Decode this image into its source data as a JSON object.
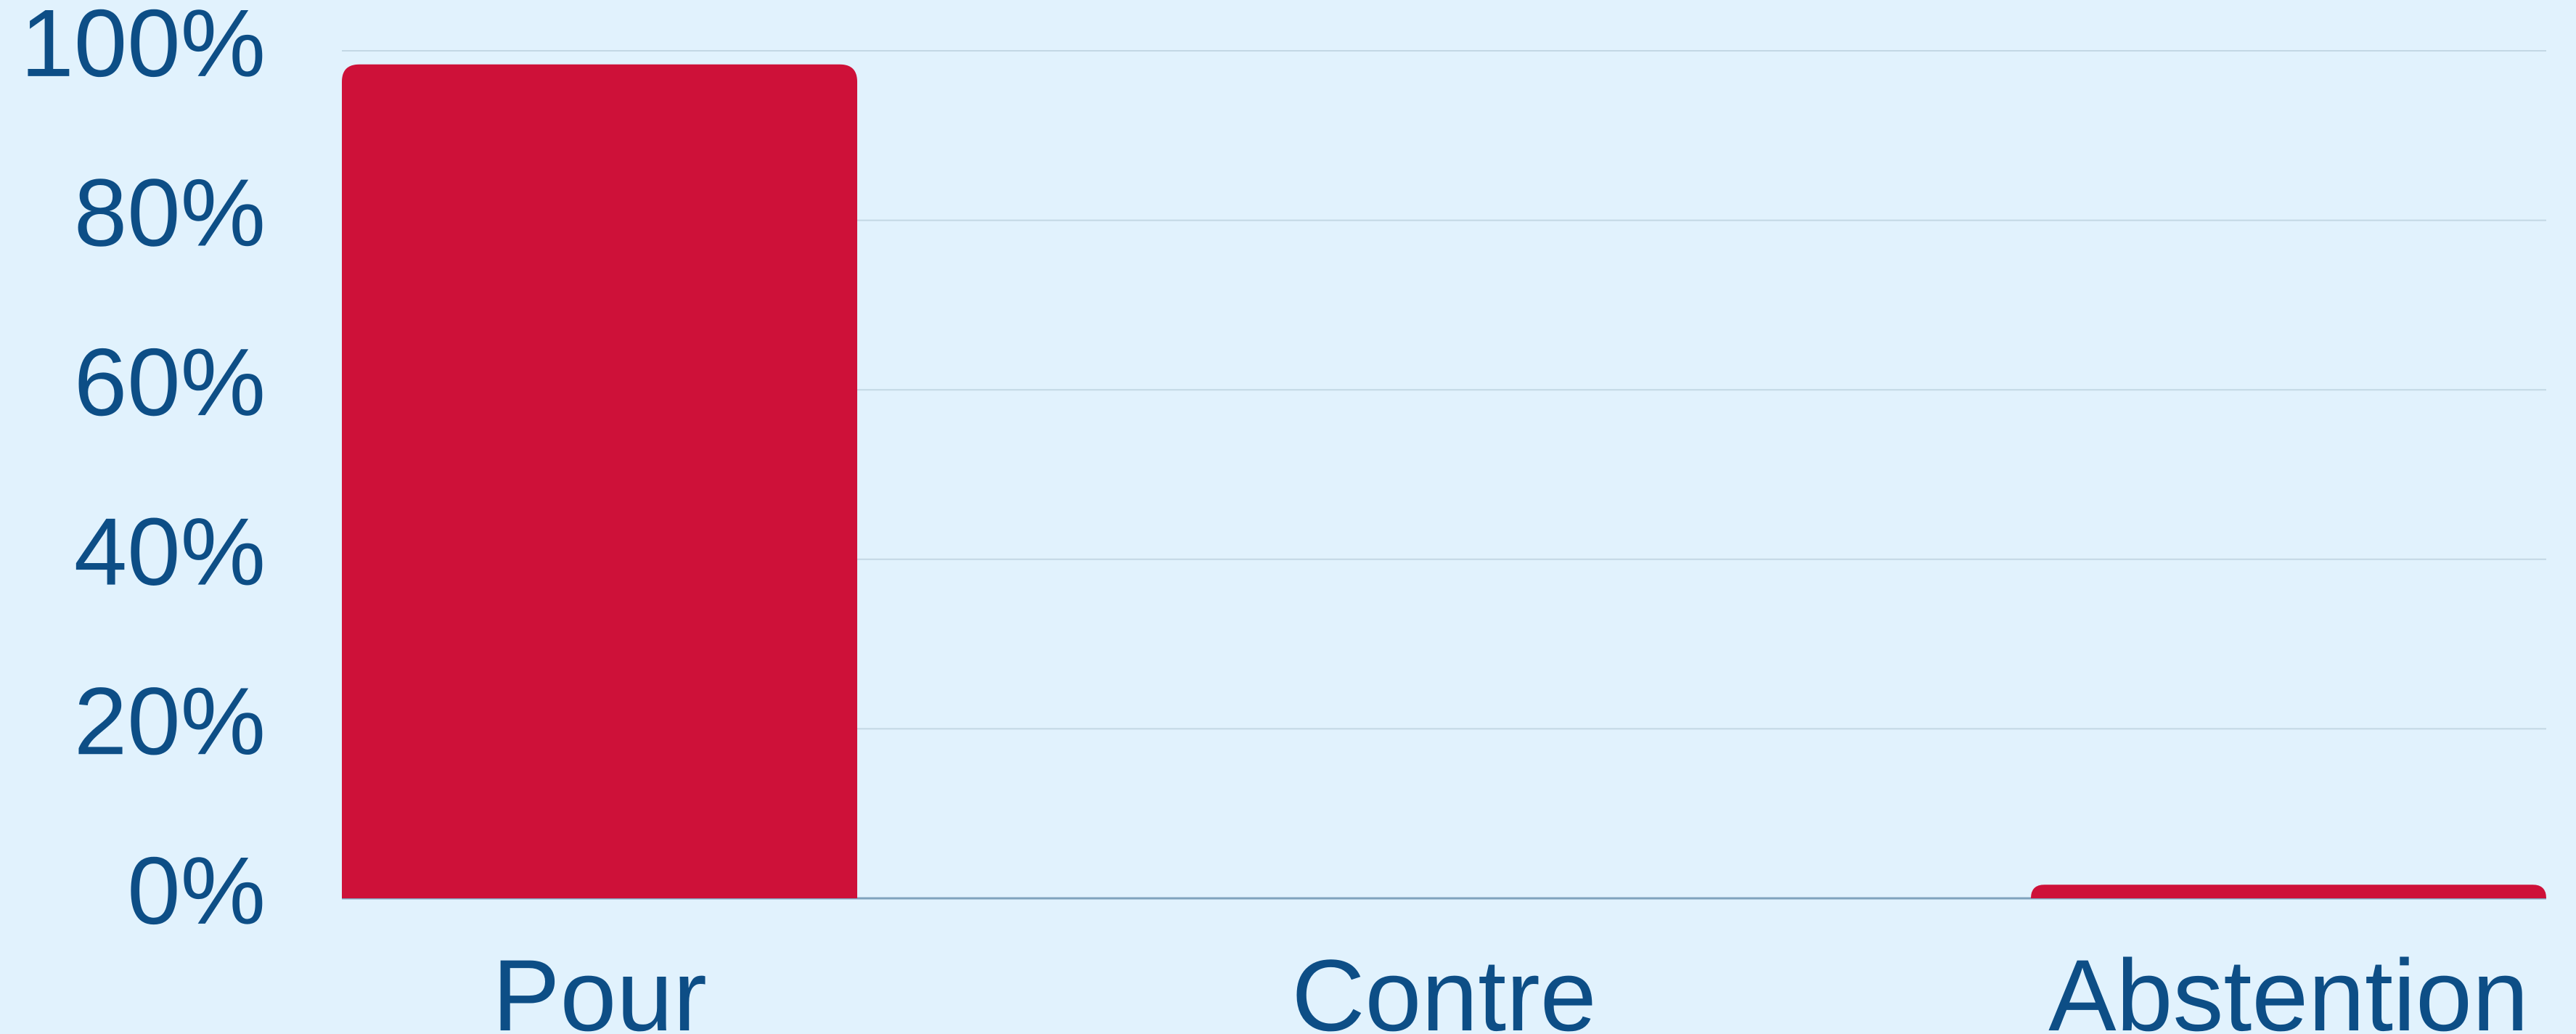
{
  "chart_data": {
    "type": "bar",
    "categories": [
      "Pour",
      "Contre",
      "Abstention"
    ],
    "values": [
      98.4,
      0,
      1.6
    ],
    "color": "#ce1139",
    "ylim": [
      0,
      100
    ],
    "yticks": [
      {
        "value": 0,
        "label": "0%"
      },
      {
        "value": 20,
        "label": "20%"
      },
      {
        "value": 40,
        "label": "40%"
      },
      {
        "value": 60,
        "label": "60%"
      },
      {
        "value": 80,
        "label": "80%"
      },
      {
        "value": 100,
        "label": "100%"
      }
    ],
    "grid": true
  }
}
